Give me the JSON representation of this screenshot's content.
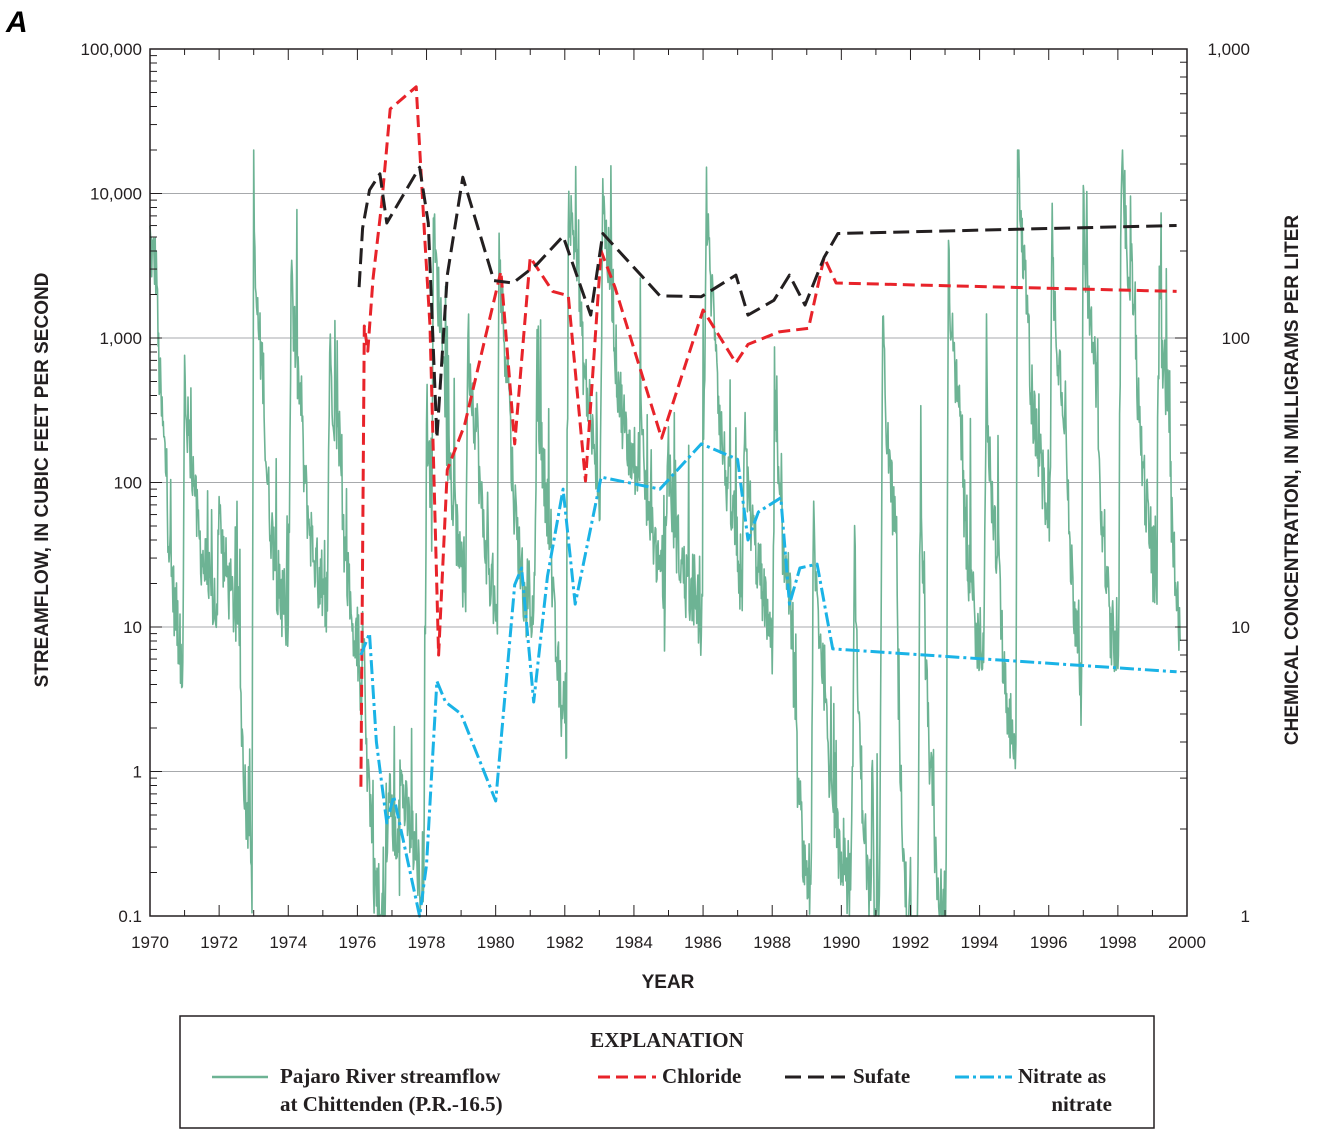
{
  "panel_label": "A",
  "chart_data": {
    "type": "line",
    "title": "",
    "xlabel": "YEAR",
    "ylabel_left": "STREAMFLOW, IN CUBIC FEET PER SECOND",
    "ylabel_right": "CHEMICAL CONCENTRATION, IN MILLIGRAMS PER LITER",
    "xlim": [
      1970,
      2000
    ],
    "x_ticks": [
      "1970",
      "1972",
      "1974",
      "1976",
      "1978",
      "1980",
      "1982",
      "1984",
      "1986",
      "1988",
      "1990",
      "1992",
      "1994",
      "1996",
      "1998",
      "2000"
    ],
    "y_left_scale": "log",
    "y_left_lim": [
      0.1,
      100000
    ],
    "y_left_ticks": [
      "0.1",
      "1",
      "10",
      "100",
      "1,000",
      "10,000",
      "100,000"
    ],
    "y_right_scale": "log",
    "y_right_lim": [
      1,
      1000
    ],
    "y_right_ticks": [
      "1",
      "10",
      "100",
      "1,000"
    ],
    "grid": "horizontal at left-axis decades",
    "legend": {
      "title": "EXPLANATION",
      "placement": "bottom",
      "entries": [
        {
          "line1": "Pajaro River streamflow",
          "line2": "at Chittenden (P.R.-16.5)"
        },
        {
          "line1": "Chloride"
        },
        {
          "line1": "Sufate"
        },
        {
          "line1": "Nitrate as",
          "line2": "nitrate"
        }
      ]
    },
    "colors": {
      "streamflow": "#6db394",
      "chloride": "#e8232a",
      "sulfate": "#231f20",
      "nitrate": "#1ab3e6",
      "grid": "#a7a9ac"
    },
    "streamflow_peaks": [
      {
        "x": 1970.0,
        "y": 5000
      },
      {
        "x": 1970.2,
        "y": 3000
      },
      {
        "x": 1970.5,
        "y": 100
      },
      {
        "x": 1970.8,
        "y": 10
      },
      {
        "x": 1971.0,
        "y": 700
      },
      {
        "x": 1971.3,
        "y": 100
      },
      {
        "x": 1971.7,
        "y": 20
      },
      {
        "x": 1972.0,
        "y": 80
      },
      {
        "x": 1972.6,
        "y": 10
      },
      {
        "x": 1972.8,
        "y": 0.5
      },
      {
        "x": 1973.0,
        "y": 6500
      },
      {
        "x": 1973.3,
        "y": 500
      },
      {
        "x": 1973.7,
        "y": 20
      },
      {
        "x": 1974.1,
        "y": 4200
      },
      {
        "x": 1974.4,
        "y": 300
      },
      {
        "x": 1974.9,
        "y": 20
      },
      {
        "x": 1975.2,
        "y": 1000
      },
      {
        "x": 1975.5,
        "y": 200
      },
      {
        "x": 1975.9,
        "y": 10
      },
      {
        "x": 1976.2,
        "y": 12
      },
      {
        "x": 1976.5,
        "y": 0.15
      },
      {
        "x": 1976.9,
        "y": 0.6
      },
      {
        "x": 1977.3,
        "y": 0.9
      },
      {
        "x": 1977.7,
        "y": 0.3
      },
      {
        "x": 1978.0,
        "y": 200
      },
      {
        "x": 1978.2,
        "y": 9000
      },
      {
        "x": 1978.5,
        "y": 1000
      },
      {
        "x": 1978.9,
        "y": 40
      },
      {
        "x": 1979.2,
        "y": 1500
      },
      {
        "x": 1979.5,
        "y": 200
      },
      {
        "x": 1979.9,
        "y": 20
      },
      {
        "x": 1980.1,
        "y": 6500
      },
      {
        "x": 1980.4,
        "y": 500
      },
      {
        "x": 1980.8,
        "y": 20
      },
      {
        "x": 1981.2,
        "y": 700
      },
      {
        "x": 1981.6,
        "y": 50
      },
      {
        "x": 1981.9,
        "y": 3
      },
      {
        "x": 1982.1,
        "y": 10000
      },
      {
        "x": 1982.4,
        "y": 4000
      },
      {
        "x": 1982.8,
        "y": 200
      },
      {
        "x": 1983.1,
        "y": 14000
      },
      {
        "x": 1983.4,
        "y": 2000
      },
      {
        "x": 1983.8,
        "y": 200
      },
      {
        "x": 1984.2,
        "y": 300
      },
      {
        "x": 1984.6,
        "y": 40
      },
      {
        "x": 1985.0,
        "y": 200
      },
      {
        "x": 1985.5,
        "y": 20
      },
      {
        "x": 1986.1,
        "y": 12000
      },
      {
        "x": 1986.4,
        "y": 1000
      },
      {
        "x": 1986.9,
        "y": 50
      },
      {
        "x": 1987.2,
        "y": 300
      },
      {
        "x": 1987.7,
        "y": 20
      },
      {
        "x": 1988.1,
        "y": 400
      },
      {
        "x": 1988.6,
        "y": 10
      },
      {
        "x": 1988.9,
        "y": 0.3
      },
      {
        "x": 1989.2,
        "y": 80
      },
      {
        "x": 1989.6,
        "y": 3
      },
      {
        "x": 1989.9,
        "y": 0.3
      },
      {
        "x": 1990.4,
        "y": 40
      },
      {
        "x": 1990.8,
        "y": 0.15
      },
      {
        "x": 1991.2,
        "y": 2000
      },
      {
        "x": 1991.6,
        "y": 40
      },
      {
        "x": 1991.9,
        "y": 0.1
      },
      {
        "x": 1992.3,
        "y": 300
      },
      {
        "x": 1992.8,
        "y": 0.15
      },
      {
        "x": 1993.1,
        "y": 5000
      },
      {
        "x": 1993.5,
        "y": 200
      },
      {
        "x": 1993.9,
        "y": 10
      },
      {
        "x": 1994.2,
        "y": 900
      },
      {
        "x": 1994.6,
        "y": 20
      },
      {
        "x": 1994.9,
        "y": 2
      },
      {
        "x": 1995.1,
        "y": 19000
      },
      {
        "x": 1995.4,
        "y": 2000
      },
      {
        "x": 1995.8,
        "y": 100
      },
      {
        "x": 1996.1,
        "y": 6000
      },
      {
        "x": 1996.5,
        "y": 300
      },
      {
        "x": 1996.8,
        "y": 10
      },
      {
        "x": 1997.0,
        "y": 14000
      },
      {
        "x": 1997.4,
        "y": 500
      },
      {
        "x": 1997.8,
        "y": 10
      },
      {
        "x": 1998.1,
        "y": 16000
      },
      {
        "x": 1998.5,
        "y": 2000
      },
      {
        "x": 1998.9,
        "y": 50
      },
      {
        "x": 1999.2,
        "y": 2500
      },
      {
        "x": 1999.5,
        "y": 300
      },
      {
        "x": 1999.8,
        "y": 8
      }
    ],
    "series": [
      {
        "name": "Chloride",
        "axis": "right",
        "x": [
          1976.1,
          1976.2,
          1976.3,
          1976.45,
          1976.7,
          1976.95,
          1977.7,
          1977.95,
          1978.1,
          1978.35,
          1978.6,
          1979.1,
          1980.15,
          1980.55,
          1981.0,
          1981.65,
          1982.1,
          1982.6,
          1983.05,
          1983.45,
          1984.8,
          1986.0,
          1986.95,
          1987.3,
          1988.2,
          1989.05,
          1989.5,
          1989.85,
          1999.7
        ],
        "y": [
          2.8,
          110,
          90,
          160,
          290,
          620,
          740,
          220,
          110,
          8,
          35,
          50,
          170,
          43,
          190,
          145,
          140,
          32,
          200,
          150,
          45,
          125,
          82,
          95,
          105,
          108,
          190,
          155,
          145
        ]
      },
      {
        "name": "Sufate",
        "axis": "right",
        "x": [
          1976.05,
          1976.15,
          1976.35,
          1976.65,
          1976.85,
          1977.8,
          1978.05,
          1978.3,
          1978.6,
          1979.05,
          1979.95,
          1980.5,
          1981.2,
          1981.95,
          1982.75,
          1983.1,
          1984.75,
          1985.95,
          1986.95,
          1987.3,
          1988.05,
          1988.5,
          1988.95,
          1989.5,
          1989.9,
          1999.7
        ],
        "y": [
          150,
          240,
          325,
          370,
          250,
          390,
          250,
          45,
          165,
          360,
          158,
          155,
          180,
          225,
          120,
          230,
          140,
          139,
          165,
          120,
          135,
          165,
          130,
          190,
          230,
          245
        ]
      },
      {
        "name": "Nitrate as nitrate",
        "axis": "right",
        "x": [
          1976.1,
          1976.35,
          1976.55,
          1976.85,
          1977.05,
          1977.8,
          1978.0,
          1978.3,
          1978.55,
          1979.0,
          1980.0,
          1980.55,
          1980.75,
          1981.1,
          1981.5,
          1981.95,
          1982.3,
          1983.05,
          1984.75,
          1985.95,
          1987.0,
          1987.3,
          1987.6,
          1988.25,
          1988.5,
          1988.8,
          1989.3,
          1989.75,
          1999.7
        ],
        "y": [
          8,
          9.5,
          4,
          2.1,
          2.6,
          1.0,
          1.5,
          6.5,
          5.5,
          5,
          2.5,
          14,
          16,
          5.5,
          15,
          30,
          12,
          33,
          30,
          43,
          38,
          20,
          25,
          28,
          12,
          16,
          16.5,
          8.4,
          7
        ]
      }
    ]
  }
}
